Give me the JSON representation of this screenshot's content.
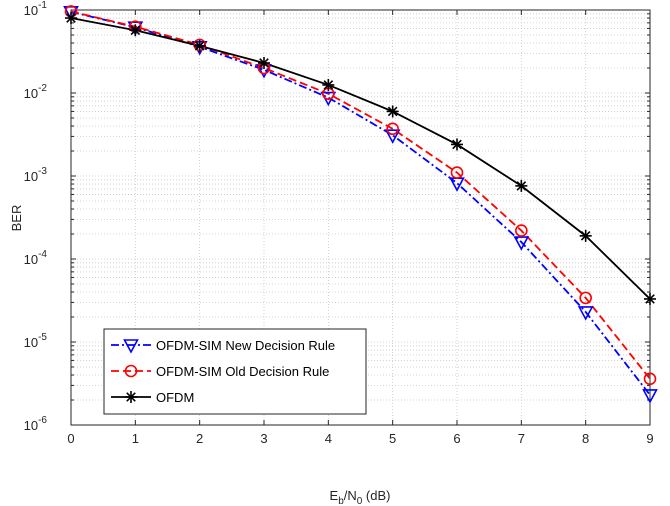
{
  "chart_data": {
    "type": "line",
    "xlabel": {
      "main": "E",
      "sub1": "b",
      "mid": "/N",
      "sub2": "0",
      "tail": " (dB)"
    },
    "ylabel": "BER",
    "yscale": "log",
    "xlim": [
      0,
      9
    ],
    "ylim": [
      1e-06,
      0.1
    ],
    "xticks": [
      "0",
      "1",
      "2",
      "3",
      "4",
      "5",
      "6",
      "7",
      "8",
      "9"
    ],
    "yticks": [
      {
        "base": "10",
        "exp": "-6"
      },
      {
        "base": "10",
        "exp": "-5"
      },
      {
        "base": "10",
        "exp": "-4"
      },
      {
        "base": "10",
        "exp": "-3"
      },
      {
        "base": "10",
        "exp": "-2"
      },
      {
        "base": "10",
        "exp": "-1"
      }
    ],
    "grid": true,
    "minor_grid": true,
    "legend_position": "lower-left",
    "x": [
      0,
      1,
      2,
      3,
      4,
      5,
      6,
      7,
      8,
      9
    ],
    "series": [
      {
        "name": "OFDM-SIM New Decision Rule",
        "color": "#0000ff",
        "line_style": "dash-dot",
        "marker": "triangle-down",
        "values": [
          0.095,
          0.062,
          0.036,
          0.019,
          0.0088,
          0.0031,
          0.00082,
          0.00016,
          2.3e-05,
          2.3e-06
        ]
      },
      {
        "name": "OFDM-SIM Old Decision Rule",
        "color": "#ff0000",
        "line_style": "dashed",
        "marker": "circle",
        "values": [
          0.096,
          0.063,
          0.038,
          0.02,
          0.0098,
          0.0037,
          0.0011,
          0.00022,
          3.4e-05,
          3.6e-06
        ]
      },
      {
        "name": "OFDM",
        "color": "#000000",
        "line_style": "solid",
        "marker": "asterisk",
        "values": [
          0.08,
          0.057,
          0.037,
          0.023,
          0.0125,
          0.006,
          0.0024,
          0.00076,
          0.00019,
          3.3e-05
        ]
      }
    ]
  }
}
